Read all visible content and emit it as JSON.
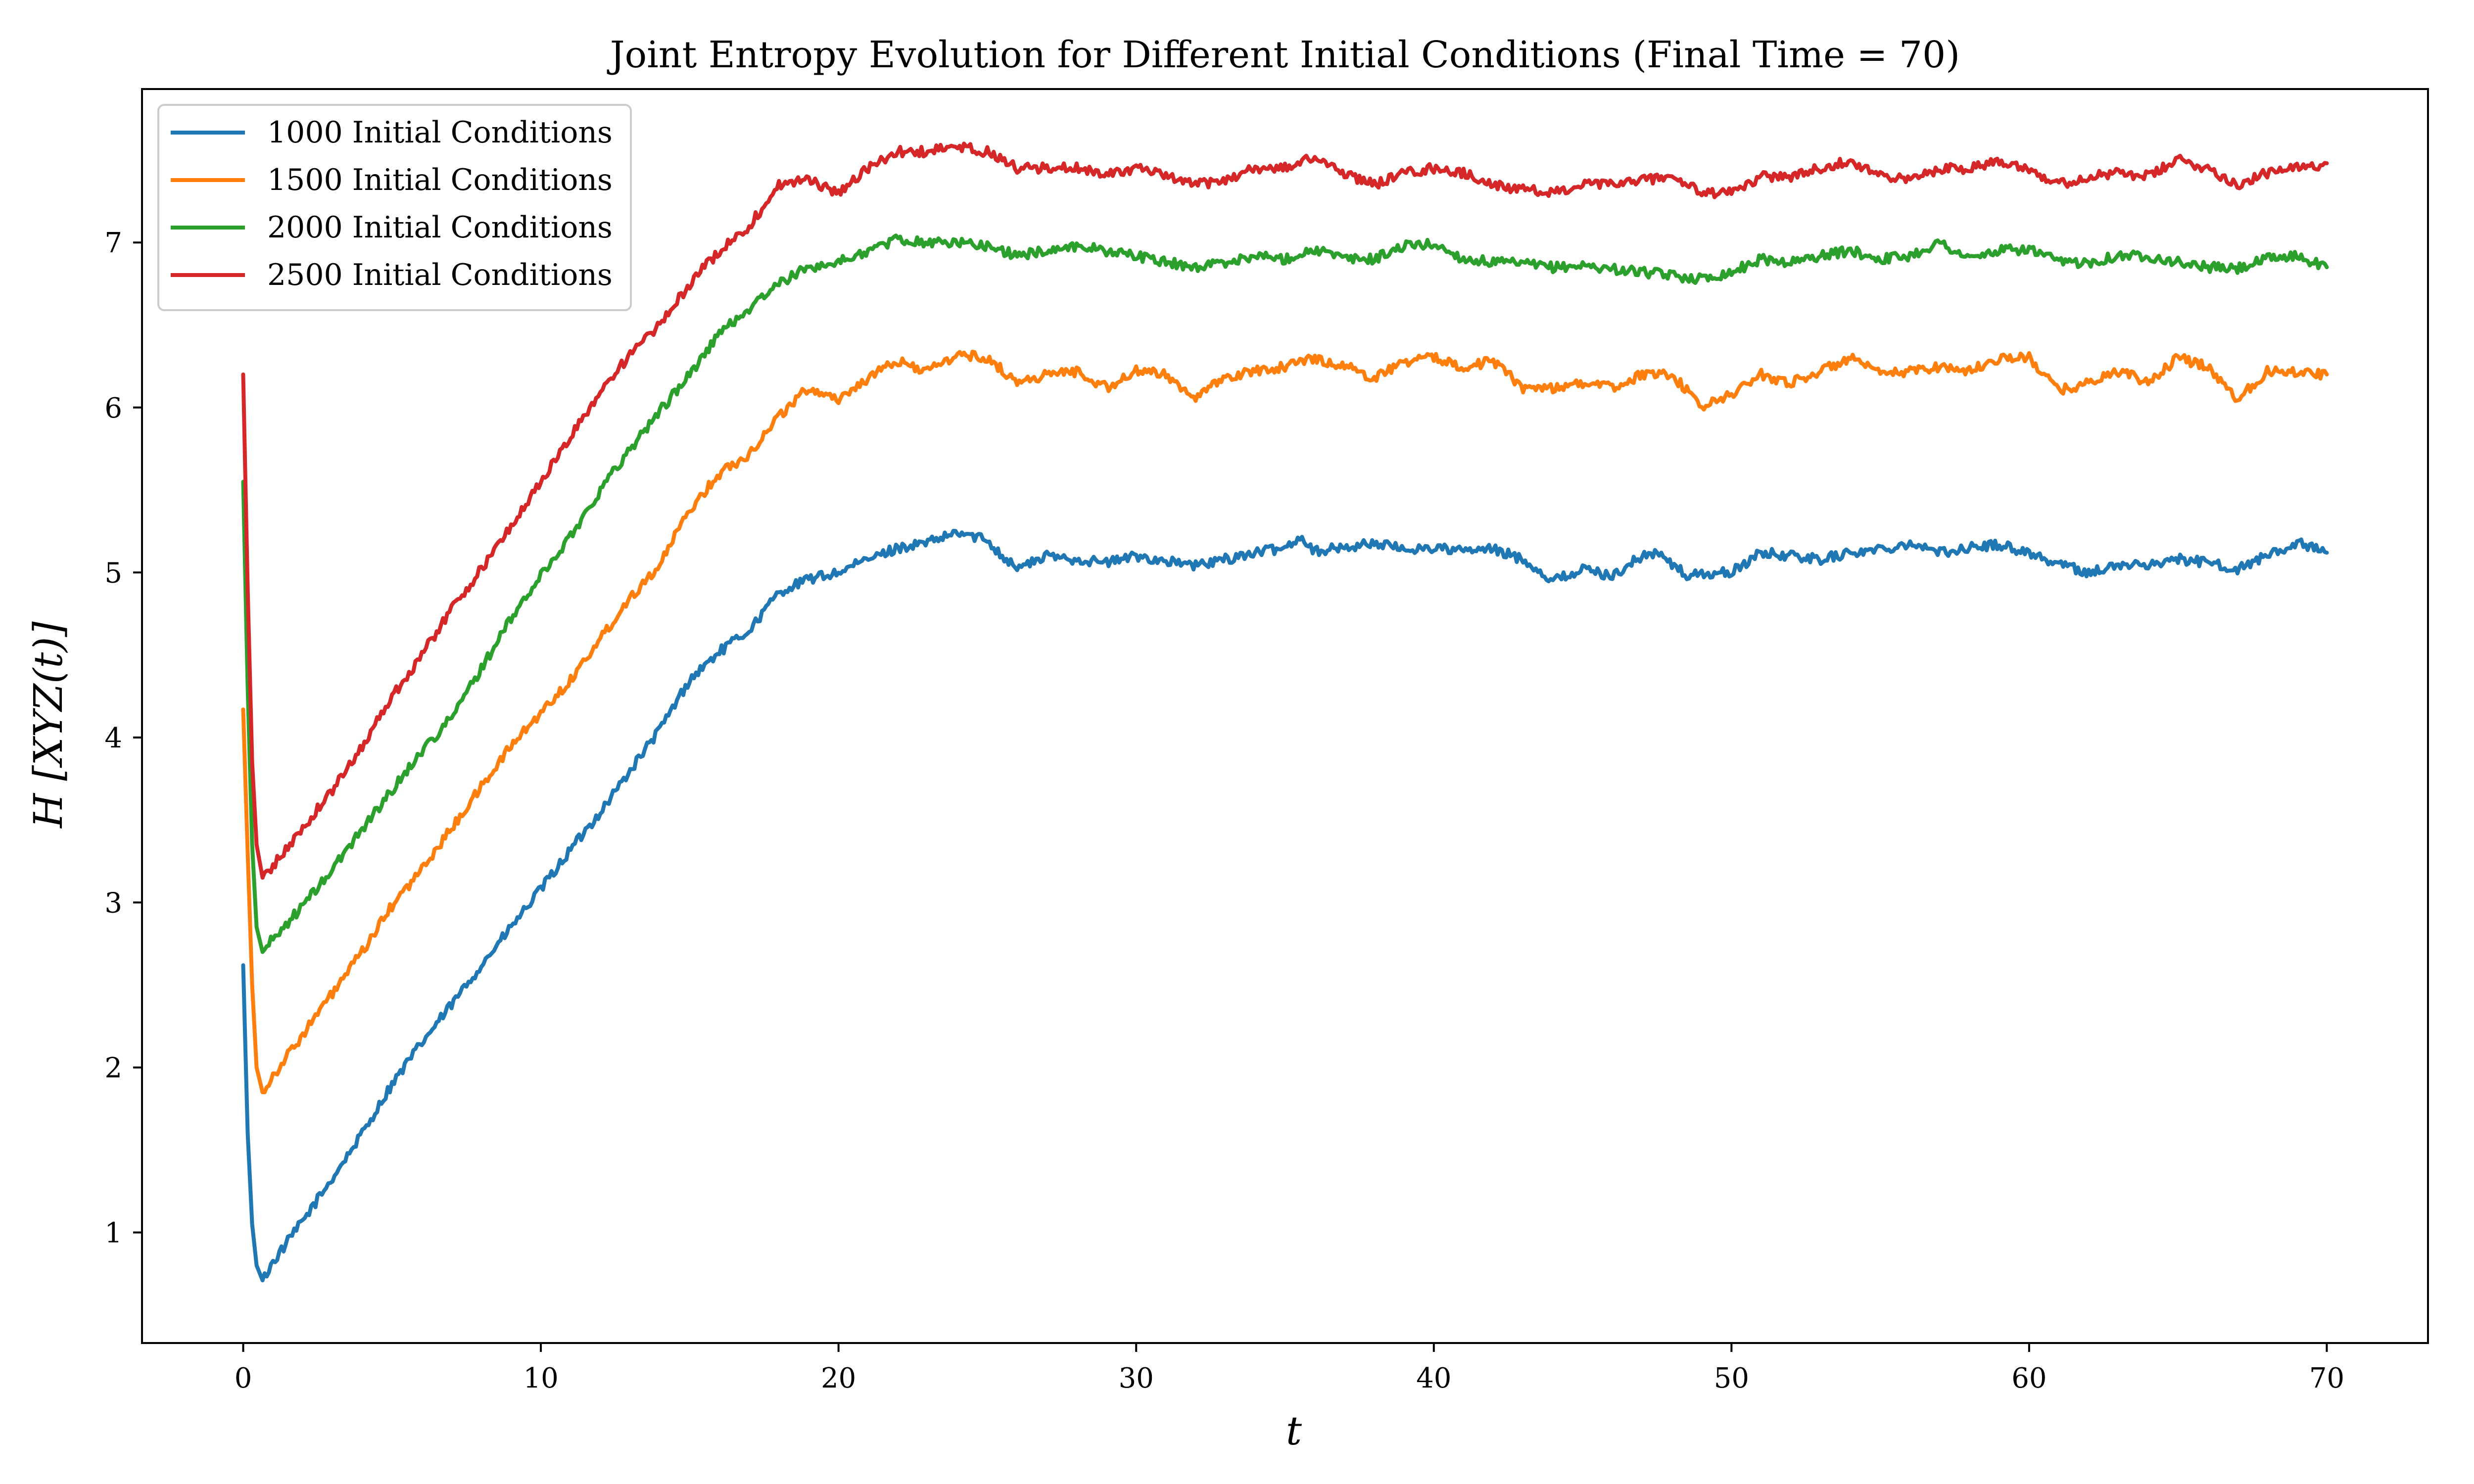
{
  "chart_data": {
    "type": "line",
    "title": "Joint Entropy Evolution for Different Initial Conditions (Final Time = 70)",
    "xlabel": "t",
    "ylabel": "H [XYZ(t)]",
    "xlim": [
      -3.4,
      73.4
    ],
    "ylim": [
      0.33,
      7.93
    ],
    "xticks": [
      0,
      10,
      20,
      30,
      40,
      50,
      60,
      70
    ],
    "yticks": [
      1,
      2,
      3,
      4,
      5,
      6,
      7
    ],
    "grid": false,
    "legend_position": "top-left",
    "series": [
      {
        "name": "1000 Initial Conditions",
        "color": "#1f77b4",
        "points": [
          [
            0,
            2.62
          ],
          [
            0.15,
            1.6
          ],
          [
            0.3,
            1.05
          ],
          [
            0.45,
            0.8
          ],
          [
            0.65,
            0.71
          ],
          [
            1,
            0.82
          ],
          [
            2,
            1.07
          ],
          [
            3,
            1.33
          ],
          [
            4,
            1.6
          ],
          [
            5,
            1.9
          ],
          [
            6,
            2.15
          ],
          [
            7,
            2.38
          ],
          [
            8,
            2.62
          ],
          [
            9,
            2.85
          ],
          [
            10,
            3.08
          ],
          [
            11,
            3.32
          ],
          [
            12,
            3.55
          ],
          [
            13,
            3.8
          ],
          [
            14,
            4.05
          ],
          [
            15,
            4.35
          ],
          [
            16,
            4.52
          ],
          [
            17,
            4.65
          ],
          [
            18,
            4.88
          ],
          [
            19,
            4.96
          ],
          [
            20,
            5.0
          ],
          [
            21,
            5.08
          ],
          [
            22,
            5.15
          ],
          [
            23,
            5.18
          ],
          [
            24,
            5.24
          ],
          [
            25,
            5.2
          ],
          [
            25.5,
            5.1
          ],
          [
            26,
            5.03
          ],
          [
            26.5,
            5.06
          ],
          [
            27,
            5.1
          ],
          [
            28,
            5.08
          ],
          [
            29,
            5.06
          ],
          [
            30,
            5.1
          ],
          [
            31,
            5.07
          ],
          [
            32,
            5.04
          ],
          [
            33,
            5.08
          ],
          [
            34,
            5.12
          ],
          [
            35,
            5.15
          ],
          [
            35.5,
            5.22
          ],
          [
            36,
            5.13
          ],
          [
            37,
            5.15
          ],
          [
            38,
            5.18
          ],
          [
            39,
            5.14
          ],
          [
            40,
            5.15
          ],
          [
            41,
            5.13
          ],
          [
            42,
            5.14
          ],
          [
            43,
            5.08
          ],
          [
            44,
            4.95
          ],
          [
            45,
            5.02
          ],
          [
            46,
            4.98
          ],
          [
            47,
            5.1
          ],
          [
            47.5,
            5.12
          ],
          [
            48,
            5.05
          ],
          [
            48.5,
            4.98
          ],
          [
            49,
            4.99
          ],
          [
            50,
            5.0
          ],
          [
            51,
            5.12
          ],
          [
            52,
            5.1
          ],
          [
            53,
            5.08
          ],
          [
            54,
            5.12
          ],
          [
            55,
            5.14
          ],
          [
            56,
            5.18
          ],
          [
            57,
            5.12
          ],
          [
            58,
            5.15
          ],
          [
            59,
            5.17
          ],
          [
            60,
            5.12
          ],
          [
            61,
            5.05
          ],
          [
            62,
            5.0
          ],
          [
            63,
            5.04
          ],
          [
            64,
            5.05
          ],
          [
            65,
            5.08
          ],
          [
            66,
            5.06
          ],
          [
            67,
            5.02
          ],
          [
            68,
            5.1
          ],
          [
            69,
            5.18
          ],
          [
            70,
            5.12
          ]
        ]
      },
      {
        "name": "1500 Initial Conditions",
        "color": "#ff7f0e",
        "points": [
          [
            0,
            4.17
          ],
          [
            0.15,
            3.3
          ],
          [
            0.3,
            2.5
          ],
          [
            0.45,
            2.0
          ],
          [
            0.65,
            1.85
          ],
          [
            1,
            1.95
          ],
          [
            2,
            2.2
          ],
          [
            3,
            2.45
          ],
          [
            4,
            2.7
          ],
          [
            5,
            2.98
          ],
          [
            6,
            3.2
          ],
          [
            7,
            3.45
          ],
          [
            8,
            3.7
          ],
          [
            9,
            3.95
          ],
          [
            10,
            4.15
          ],
          [
            11,
            4.35
          ],
          [
            12,
            4.6
          ],
          [
            13,
            4.85
          ],
          [
            14,
            5.05
          ],
          [
            15,
            5.38
          ],
          [
            16,
            5.6
          ],
          [
            17,
            5.72
          ],
          [
            18,
            5.95
          ],
          [
            19,
            6.12
          ],
          [
            20,
            6.05
          ],
          [
            21,
            6.18
          ],
          [
            22,
            6.28
          ],
          [
            23,
            6.22
          ],
          [
            24,
            6.32
          ],
          [
            25,
            6.3
          ],
          [
            26,
            6.15
          ],
          [
            27,
            6.2
          ],
          [
            28,
            6.22
          ],
          [
            29,
            6.12
          ],
          [
            30,
            6.22
          ],
          [
            31,
            6.2
          ],
          [
            32,
            6.06
          ],
          [
            33,
            6.18
          ],
          [
            34,
            6.22
          ],
          [
            35,
            6.25
          ],
          [
            36,
            6.3
          ],
          [
            37,
            6.25
          ],
          [
            38,
            6.18
          ],
          [
            39,
            6.28
          ],
          [
            40,
            6.3
          ],
          [
            41,
            6.25
          ],
          [
            42,
            6.28
          ],
          [
            43,
            6.12
          ],
          [
            44,
            6.12
          ],
          [
            45,
            6.15
          ],
          [
            46,
            6.12
          ],
          [
            47,
            6.2
          ],
          [
            48,
            6.2
          ],
          [
            49,
            6.0
          ],
          [
            50,
            6.08
          ],
          [
            51,
            6.2
          ],
          [
            52,
            6.15
          ],
          [
            53,
            6.22
          ],
          [
            54,
            6.3
          ],
          [
            55,
            6.2
          ],
          [
            56,
            6.22
          ],
          [
            57,
            6.25
          ],
          [
            58,
            6.22
          ],
          [
            59,
            6.3
          ],
          [
            60,
            6.3
          ],
          [
            61,
            6.1
          ],
          [
            62,
            6.15
          ],
          [
            63,
            6.22
          ],
          [
            64,
            6.15
          ],
          [
            65,
            6.3
          ],
          [
            66,
            6.25
          ],
          [
            67,
            6.05
          ],
          [
            68,
            6.22
          ],
          [
            69,
            6.22
          ],
          [
            70,
            6.2
          ]
        ]
      },
      {
        "name": "2000 Initial Conditions",
        "color": "#2ca02c",
        "points": [
          [
            0,
            5.55
          ],
          [
            0.15,
            4.3
          ],
          [
            0.3,
            3.35
          ],
          [
            0.45,
            2.85
          ],
          [
            0.65,
            2.7
          ],
          [
            1,
            2.78
          ],
          [
            2,
            2.98
          ],
          [
            3,
            3.2
          ],
          [
            4,
            3.45
          ],
          [
            5,
            3.68
          ],
          [
            6,
            3.92
          ],
          [
            7,
            4.12
          ],
          [
            8,
            4.42
          ],
          [
            9,
            4.72
          ],
          [
            10,
            4.98
          ],
          [
            11,
            5.22
          ],
          [
            12,
            5.5
          ],
          [
            13,
            5.75
          ],
          [
            14,
            5.98
          ],
          [
            15,
            6.2
          ],
          [
            16,
            6.45
          ],
          [
            17,
            6.6
          ],
          [
            18,
            6.75
          ],
          [
            19,
            6.85
          ],
          [
            20,
            6.88
          ],
          [
            21,
            6.95
          ],
          [
            22,
            7.02
          ],
          [
            23,
            7.0
          ],
          [
            24,
            7.0
          ],
          [
            25,
            6.98
          ],
          [
            26,
            6.92
          ],
          [
            27,
            6.95
          ],
          [
            28,
            6.98
          ],
          [
            29,
            6.95
          ],
          [
            30,
            6.92
          ],
          [
            31,
            6.88
          ],
          [
            32,
            6.85
          ],
          [
            33,
            6.88
          ],
          [
            34,
            6.92
          ],
          [
            35,
            6.9
          ],
          [
            36,
            6.96
          ],
          [
            37,
            6.9
          ],
          [
            38,
            6.9
          ],
          [
            39,
            6.98
          ],
          [
            40,
            6.99
          ],
          [
            41,
            6.9
          ],
          [
            42,
            6.88
          ],
          [
            43,
            6.87
          ],
          [
            44,
            6.85
          ],
          [
            45,
            6.86
          ],
          [
            46,
            6.84
          ],
          [
            47,
            6.82
          ],
          [
            48,
            6.8
          ],
          [
            49,
            6.78
          ],
          [
            50,
            6.82
          ],
          [
            51,
            6.9
          ],
          [
            52,
            6.88
          ],
          [
            53,
            6.92
          ],
          [
            54,
            6.95
          ],
          [
            55,
            6.9
          ],
          [
            56,
            6.92
          ],
          [
            57,
            7.0
          ],
          [
            58,
            6.9
          ],
          [
            59,
            6.95
          ],
          [
            60,
            6.96
          ],
          [
            61,
            6.88
          ],
          [
            62,
            6.88
          ],
          [
            63,
            6.92
          ],
          [
            64,
            6.92
          ],
          [
            65,
            6.88
          ],
          [
            66,
            6.85
          ],
          [
            67,
            6.84
          ],
          [
            68,
            6.9
          ],
          [
            69,
            6.92
          ],
          [
            70,
            6.85
          ]
        ]
      },
      {
        "name": "2500 Initial Conditions",
        "color": "#d62728",
        "points": [
          [
            0,
            6.2
          ],
          [
            0.15,
            4.9
          ],
          [
            0.3,
            3.85
          ],
          [
            0.45,
            3.35
          ],
          [
            0.65,
            3.15
          ],
          [
            1,
            3.22
          ],
          [
            2,
            3.45
          ],
          [
            3,
            3.68
          ],
          [
            4,
            3.95
          ],
          [
            5,
            4.25
          ],
          [
            6,
            4.5
          ],
          [
            7,
            4.78
          ],
          [
            8,
            5.02
          ],
          [
            9,
            5.28
          ],
          [
            10,
            5.55
          ],
          [
            11,
            5.82
          ],
          [
            12,
            6.1
          ],
          [
            13,
            6.32
          ],
          [
            14,
            6.5
          ],
          [
            15,
            6.75
          ],
          [
            16,
            6.95
          ],
          [
            17,
            7.1
          ],
          [
            18,
            7.35
          ],
          [
            19,
            7.38
          ],
          [
            20,
            7.3
          ],
          [
            21,
            7.45
          ],
          [
            22,
            7.55
          ],
          [
            23,
            7.55
          ],
          [
            24,
            7.58
          ],
          [
            25,
            7.55
          ],
          [
            26,
            7.45
          ],
          [
            27,
            7.45
          ],
          [
            28,
            7.45
          ],
          [
            29,
            7.42
          ],
          [
            30,
            7.45
          ],
          [
            31,
            7.4
          ],
          [
            32,
            7.35
          ],
          [
            33,
            7.38
          ],
          [
            34,
            7.45
          ],
          [
            35,
            7.45
          ],
          [
            36,
            7.52
          ],
          [
            37,
            7.42
          ],
          [
            38,
            7.35
          ],
          [
            39,
            7.42
          ],
          [
            40,
            7.45
          ],
          [
            41,
            7.42
          ],
          [
            42,
            7.35
          ],
          [
            43,
            7.32
          ],
          [
            44,
            7.3
          ],
          [
            45,
            7.35
          ],
          [
            46,
            7.35
          ],
          [
            47,
            7.38
          ],
          [
            48,
            7.4
          ],
          [
            49,
            7.3
          ],
          [
            50,
            7.3
          ],
          [
            51,
            7.4
          ],
          [
            52,
            7.4
          ],
          [
            53,
            7.45
          ],
          [
            54,
            7.5
          ],
          [
            55,
            7.4
          ],
          [
            56,
            7.38
          ],
          [
            57,
            7.45
          ],
          [
            58,
            7.45
          ],
          [
            59,
            7.5
          ],
          [
            60,
            7.45
          ],
          [
            61,
            7.35
          ],
          [
            62,
            7.4
          ],
          [
            63,
            7.42
          ],
          [
            64,
            7.4
          ],
          [
            65,
            7.5
          ],
          [
            66,
            7.45
          ],
          [
            67,
            7.35
          ],
          [
            68,
            7.42
          ],
          [
            69,
            7.45
          ],
          [
            70,
            7.48
          ]
        ]
      }
    ]
  }
}
